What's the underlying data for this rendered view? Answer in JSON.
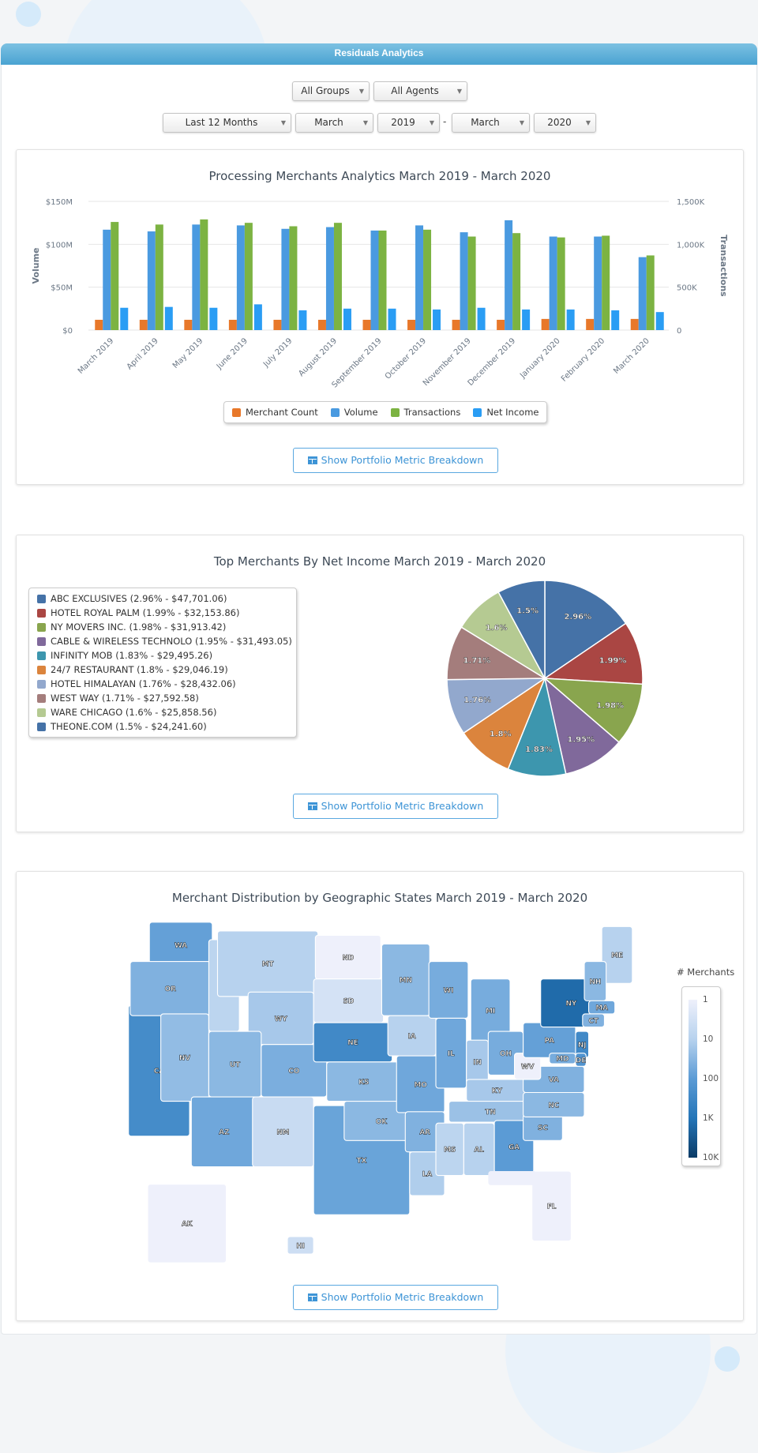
{
  "header": {
    "title": "Residuals Analytics"
  },
  "filters": {
    "group": "All Groups",
    "agent": "All Agents",
    "period": "Last 12 Months",
    "from_month": "March",
    "from_year": "2019",
    "separator": "-",
    "to_month": "March",
    "to_year": "2020"
  },
  "button_label": "Show Portfolio Metric Breakdown",
  "chart_data": [
    {
      "type": "bar",
      "title": "Processing Merchants Analytics March 2019 - March 2020",
      "categories": [
        "March 2019",
        "April 2019",
        "May 2019",
        "June 2019",
        "July 2019",
        "August 2019",
        "September 2019",
        "October 2019",
        "November 2019",
        "December 2019",
        "January 2020",
        "February 2020",
        "March 2020"
      ],
      "ylabel": "Volume",
      "ylabel_right": "Transactions",
      "yticks": [
        "$0",
        "$50M",
        "$100M",
        "$150M"
      ],
      "yticks_right": [
        "0",
        "500K",
        "1,000K",
        "1,500K"
      ],
      "ylim": [
        0,
        150
      ],
      "ylim_right": [
        0,
        1500
      ],
      "grid": true,
      "legend_placement": "bottom",
      "series": [
        {
          "name": "Merchant Count",
          "axis": "left",
          "color": "#e8782a",
          "values": [
            12,
            12,
            12,
            12,
            12,
            12,
            12,
            12,
            12,
            12,
            13,
            13,
            13
          ]
        },
        {
          "name": "Volume",
          "axis": "left",
          "color": "#4a9ae0",
          "values": [
            117,
            115,
            123,
            122,
            118,
            120,
            116,
            122,
            114,
            128,
            109,
            109,
            85
          ]
        },
        {
          "name": "Transactions",
          "axis": "right",
          "color": "#7cb342",
          "values": [
            1260,
            1230,
            1290,
            1250,
            1210,
            1250,
            1160,
            1170,
            1090,
            1130,
            1080,
            1100,
            870
          ]
        },
        {
          "name": "Net Income",
          "axis": "left",
          "color": "#2a9df4",
          "values": [
            26,
            27,
            26,
            30,
            23,
            25,
            25,
            24,
            26,
            24,
            24,
            23,
            21
          ]
        }
      ]
    },
    {
      "type": "pie",
      "title": "Top Merchants By Net Income March 2019 - March 2020",
      "legend_placement": "left",
      "slices": [
        {
          "name": "ABC EXCLUSIVES",
          "percent": 2.96,
          "label": "2.96%",
          "value": "$47,701.06",
          "color": "#4572a7"
        },
        {
          "name": "HOTEL ROYAL PALM",
          "percent": 1.99,
          "label": "1.99%",
          "value": "$32,153.86",
          "color": "#aa4643"
        },
        {
          "name": "NY MOVERS INC.",
          "percent": 1.98,
          "label": "1.98%",
          "value": "$31,913.42",
          "color": "#89a54e"
        },
        {
          "name": "CABLE & WIRELESS TECHNOLO",
          "percent": 1.95,
          "label": "1.95%",
          "value": "$31,493.05",
          "color": "#80699b"
        },
        {
          "name": "INFINITY MOB",
          "percent": 1.83,
          "label": "1.83%",
          "value": "$29,495.26",
          "color": "#3d96ae"
        },
        {
          "name": "24/7 RESTAURANT",
          "percent": 1.8,
          "label": "1.8%",
          "value": "$29,046.19",
          "color": "#db843d"
        },
        {
          "name": "HOTEL HIMALAYAN",
          "percent": 1.76,
          "label": "1.76%",
          "value": "$28,432.06",
          "color": "#92a8cd"
        },
        {
          "name": "WEST WAY",
          "percent": 1.71,
          "label": "1.71%",
          "value": "$27,592.58",
          "color": "#a47d7c"
        },
        {
          "name": "WARE CHICAGO",
          "percent": 1.6,
          "label": "1.6%",
          "value": "$25,858.56",
          "color": "#b5ca92"
        },
        {
          "name": "THEONE.COM",
          "percent": 1.5,
          "label": "1.5%",
          "value": "$24,241.60",
          "color": "#4572a7"
        }
      ]
    },
    {
      "type": "heatmap",
      "title": "Merchant Distribution by Geographic States March 2019 - March 2020",
      "legend_title": "# Merchants",
      "legend_ticks": [
        "1",
        "10",
        "100",
        "1K",
        "10K"
      ],
      "scale": "log",
      "color_min": "#eef0fb",
      "color_max": "#0b3b66",
      "states": {
        "WA": 80,
        "OR": 40,
        "CA": 250,
        "NV": 25,
        "ID": 8,
        "MT": 10,
        "WY": 15,
        "UT": 30,
        "CO": 45,
        "AZ": 60,
        "NM": 5,
        "ND": 1,
        "SD": 3,
        "NE": 300,
        "KS": 30,
        "OK": 30,
        "TX": 70,
        "MN": 30,
        "IA": 10,
        "MO": 60,
        "AR": 40,
        "LA": 12,
        "WI": 50,
        "IL": 60,
        "MI": 50,
        "IN": 15,
        "OH": 50,
        "KY": 15,
        "TN": 20,
        "MS": 8,
        "AL": 10,
        "GA": 100,
        "SC": 40,
        "NC": 30,
        "VA": 40,
        "WV": 1,
        "PA": 80,
        "NY": 1500,
        "ME": 10,
        "NH": 30,
        "MA": 60,
        "CT": 40,
        "NJ": 300,
        "MD": 50,
        "DE": 150,
        "AK": 1,
        "HI": 4
      }
    }
  ]
}
